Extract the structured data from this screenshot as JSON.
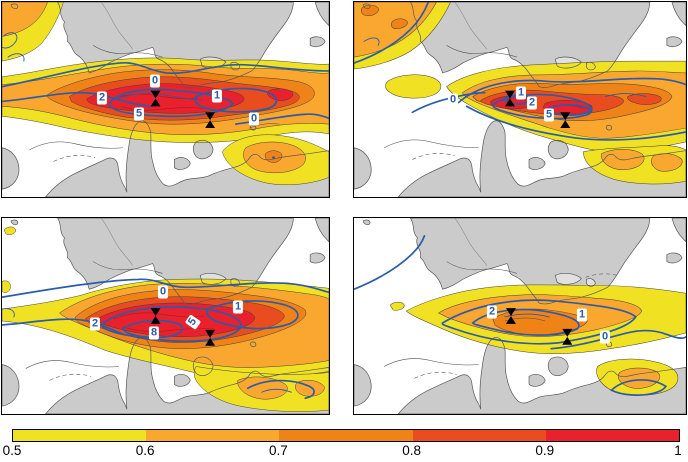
{
  "colors": {
    "land": "#cbcbcb",
    "lake": "#e0e0e0",
    "coast": "#57575a",
    "sea": "#ffffff",
    "contour_blue": "#2b5ca9",
    "thin_contour": "#4d4d4d",
    "marker": "#000000"
  },
  "colorbar": {
    "ticks": [
      "0.5",
      "0.6",
      "0.7",
      "0.8",
      "0.9",
      "1"
    ],
    "colors": [
      "#f0e122",
      "#f9a72e",
      "#f08318",
      "#e94d1f",
      "#e9202d"
    ]
  },
  "panels": {
    "top_left": {
      "contour_labels": [
        "0",
        "2",
        "5",
        "1",
        "0"
      ]
    },
    "top_right": {
      "contour_labels": [
        "0",
        "1",
        "2",
        "5"
      ]
    },
    "bottom_left": {
      "contour_labels": [
        "0",
        "1",
        "2",
        "8",
        "5"
      ]
    },
    "bottom_right": {
      "contour_labels": [
        "2",
        "1",
        "0"
      ]
    }
  },
  "chart_data": {
    "type": "heatmap",
    "title": "",
    "description": "2x2 grid of filled-contour maps over the North Sea / Baltic region (gray land, white sea). Filled levels follow the shared colorbar from 0.5 to 1 in steps of 0.1. Thick blue overlaid contours carry boxed labels; each panel has two black bow-tie station markers at the same locations.",
    "colorbar": {
      "range": [
        0.5,
        1
      ],
      "ticks": [
        0.5,
        0.6,
        0.7,
        0.8,
        0.9,
        1
      ],
      "colors": [
        "#f0e122",
        "#f9a72e",
        "#f08318",
        "#e94d1f",
        "#e9202d"
      ],
      "orientation": "horizontal",
      "position": "bottom"
    },
    "panels": [
      {
        "position": "top-left",
        "blue_contour_labels": [
          0,
          2,
          5,
          1,
          0
        ],
        "max_filled_level": "0.9-1.0",
        "station_markers": 2
      },
      {
        "position": "top-right",
        "blue_contour_labels": [
          0,
          1,
          2,
          5
        ],
        "max_filled_level": "0.9-1.0",
        "station_markers": 2
      },
      {
        "position": "bottom-left",
        "blue_contour_labels": [
          0,
          1,
          2,
          8,
          5
        ],
        "max_filled_level": "0.9-1.0",
        "station_markers": 2
      },
      {
        "position": "bottom-right",
        "blue_contour_labels": [
          2,
          1,
          0
        ],
        "max_filled_level": "0.7-0.8",
        "station_markers": 2
      }
    ]
  }
}
